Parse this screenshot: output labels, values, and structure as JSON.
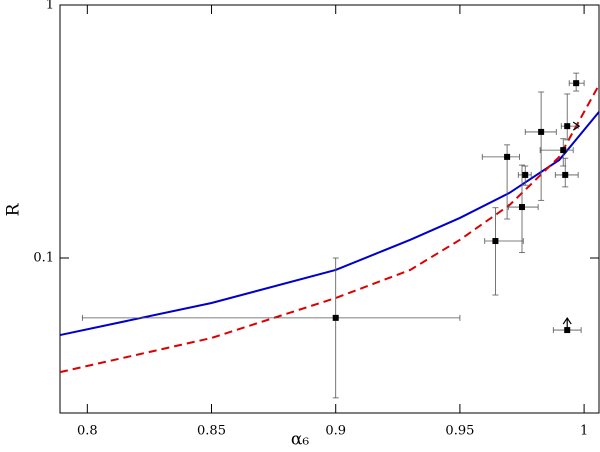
{
  "chart_data": {
    "type": "scatter",
    "x_label": "α₆",
    "y_label": "R",
    "xlim": [
      0.789,
      1.006
    ],
    "xticks": [
      0.8,
      0.85,
      0.9,
      0.95,
      1
    ],
    "ylim": [
      0.0244,
      1
    ],
    "yticks": [
      0.1,
      1
    ],
    "log_y": true,
    "series": [
      {
        "color": "#000000",
        "x": [
          0.9,
          0.9643,
          0.969,
          0.975,
          0.9763,
          0.9827,
          0.9916,
          0.9932,
          0.9924,
          0.9968,
          0.9932
        ],
        "values": [
          0.058,
          0.1167,
          0.251,
          0.159,
          0.213,
          0.315,
          0.267,
          0.332,
          0.213,
          0.491,
          0.0519
        ],
        "x_low": [
          0.798,
          0.96,
          0.959,
          0.9695,
          0.9735,
          0.9763,
          0.9823,
          0.9908,
          0.9884,
          0.994,
          0.9876
        ],
        "x_high": [
          0.95,
          0.9755,
          0.974,
          0.9815,
          0.9787,
          0.9888,
          0.9956,
          0.9976,
          0.9976,
          1.0,
          0.9988
        ],
        "y_low": [
          0.028,
          0.0714,
          0.1426,
          0.105,
          0.194,
          0.169,
          0.231,
          0.293,
          0.191,
          0.457,
          null
        ],
        "y_high": [
          0.1,
          0.158,
          0.28,
          0.233,
          0.231,
          0.453,
          0.296,
          0.445,
          0.248,
          0.538,
          null
        ],
        "x_lower_limit": [
          false,
          false,
          false,
          false,
          false,
          false,
          false,
          true,
          false,
          false,
          false
        ],
        "y_lower_limit": [
          false,
          false,
          false,
          false,
          false,
          false,
          false,
          false,
          false,
          false,
          true
        ]
      }
    ],
    "curves": [
      {
        "color": "#0000cc",
        "dashed": false,
        "x": [
          0.789,
          0.85,
          0.9,
          0.93,
          0.95,
          0.97,
          0.99,
          1.006
        ],
        "values": [
          0.0496,
          0.0664,
          0.0897,
          0.118,
          0.144,
          0.181,
          0.244,
          0.378
        ]
      },
      {
        "color": "#dd0000",
        "dashed": true,
        "x": [
          0.789,
          0.85,
          0.9,
          0.93,
          0.95,
          0.97,
          0.99,
          1.006
        ],
        "values": [
          0.0354,
          0.0483,
          0.0695,
          0.0897,
          0.118,
          0.162,
          0.251,
          0.483
        ]
      }
    ]
  }
}
